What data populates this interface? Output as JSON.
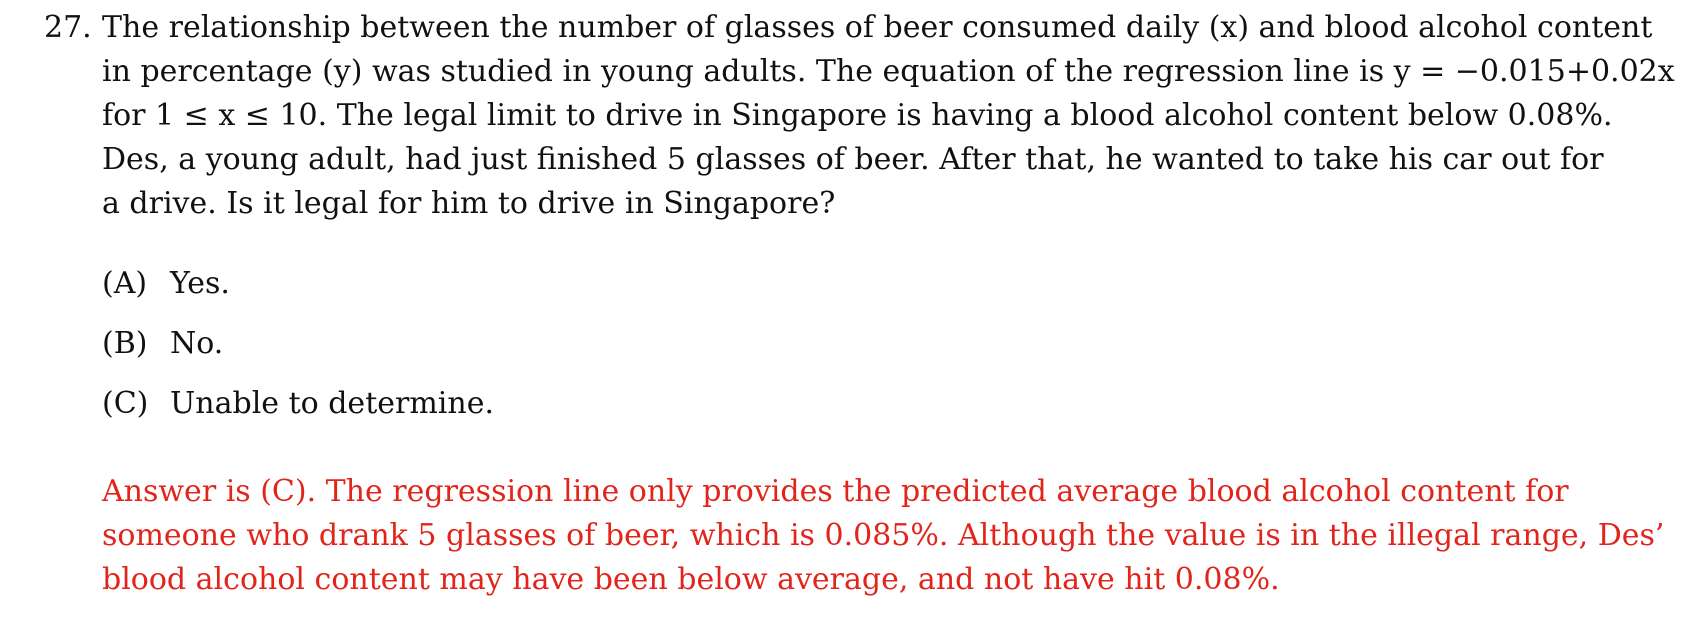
{
  "question": {
    "number": "27.",
    "lines": [
      "The relationship between the number of glasses of beer consumed daily (x) and blood alcohol content",
      "in percentage (y) was studied in young adults.  The equation of the regression line is y = −0.015+0.02x",
      "for 1 ≤ x ≤ 10.  The legal limit to drive in Singapore is having a blood alcohol content below 0.08%.",
      "Des, a young adult, had just finished 5 glasses of beer.  After that, he wanted to take his car out for",
      "a drive.  Is it legal for him to drive in Singapore?"
    ]
  },
  "options": [
    {
      "letter": "(A)",
      "text": "Yes."
    },
    {
      "letter": "(B)",
      "text": "No."
    },
    {
      "letter": "(C)",
      "text": "Unable to determine."
    }
  ],
  "answer": {
    "color": "#e1251b",
    "lines": [
      "Answer is (C).  The regression line only provides the predicted average blood alcohol content for",
      "someone who drank 5 glasses of beer, which is 0.085%.  Although the value is in the illegal range, Des’",
      "blood alcohol content may have been below average, and not have hit 0.08%."
    ]
  }
}
